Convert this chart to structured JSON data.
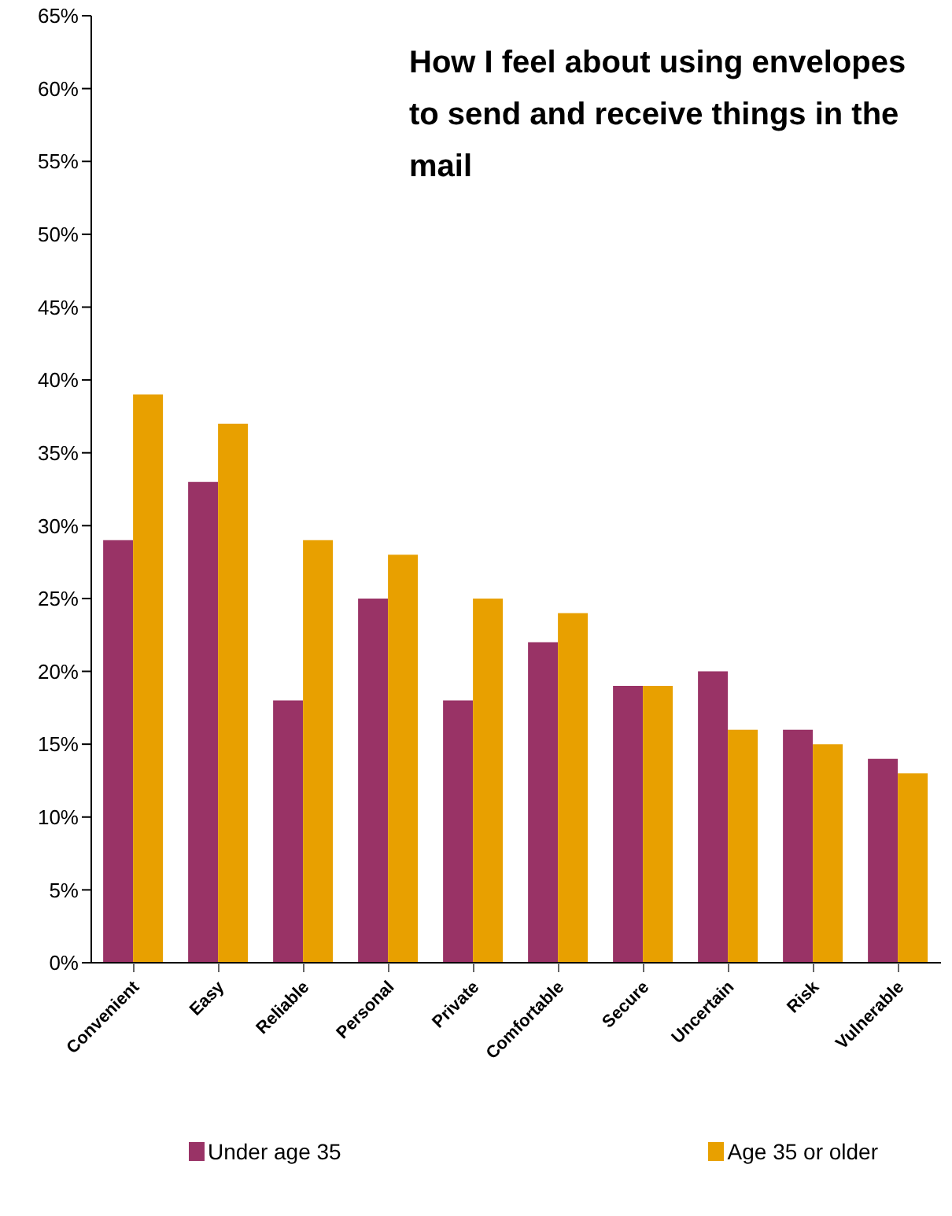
{
  "chart_data": {
    "type": "bar",
    "title": "How I feel about using envelopes to send and receive things in the mail",
    "categories": [
      "Convenient",
      "Easy",
      "Reliable",
      "Personal",
      "Private",
      "Comfortable",
      "Secure",
      "Uncertain",
      "Risk",
      "Vulnerable"
    ],
    "series": [
      {
        "name": "Under age 35",
        "color": "#993366",
        "values": [
          29,
          33,
          18,
          25,
          18,
          22,
          19,
          20,
          16,
          14
        ]
      },
      {
        "name": "Age 35 or older",
        "color": "#e8a000",
        "values": [
          39,
          37,
          29,
          28,
          25,
          24,
          19,
          16,
          15,
          13
        ]
      }
    ],
    "ylim": [
      0,
      65
    ],
    "yticks": [
      {
        "value": 0,
        "label": "0%"
      },
      {
        "value": 5,
        "label": "5%"
      },
      {
        "value": 10,
        "label": "10%"
      },
      {
        "value": 15,
        "label": "15%"
      },
      {
        "value": 20,
        "label": "20%"
      },
      {
        "value": 25,
        "label": "25%"
      },
      {
        "value": 30,
        "label": "30%"
      },
      {
        "value": 35,
        "label": "35%"
      },
      {
        "value": 40,
        "label": "40%"
      },
      {
        "value": 45,
        "label": "45%"
      },
      {
        "value": 50,
        "label": "50%"
      },
      {
        "value": 55,
        "label": "55%"
      },
      {
        "value": 60,
        "label": "60%"
      },
      {
        "value": 65,
        "label": "65%"
      }
    ],
    "legend": "bottom"
  }
}
